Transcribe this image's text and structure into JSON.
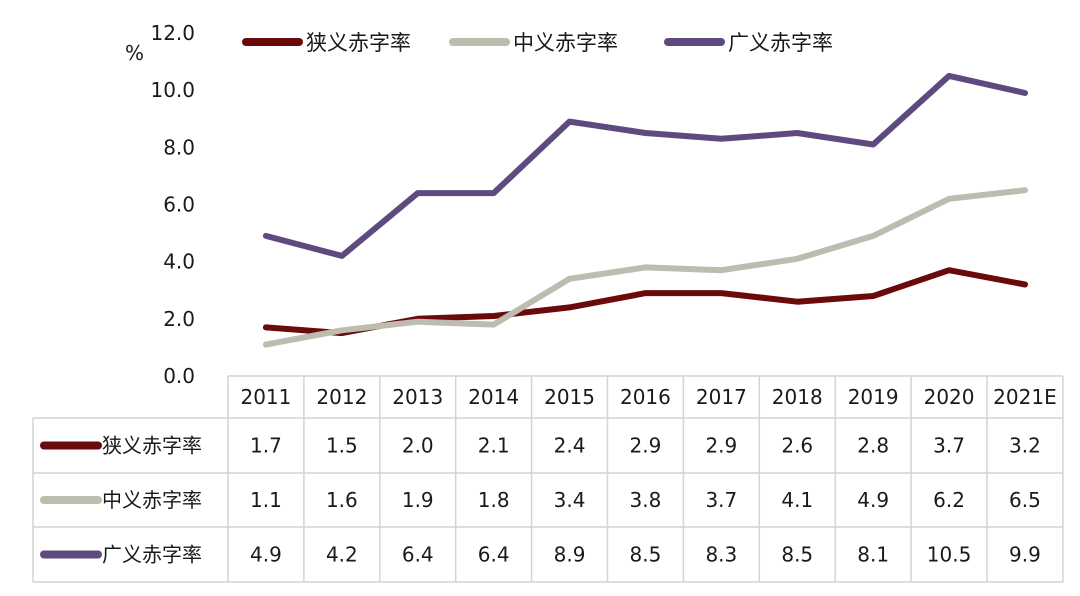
{
  "chart_data": {
    "type": "line",
    "unit": "%",
    "categories": [
      "2011",
      "2012",
      "2013",
      "2014",
      "2015",
      "2016",
      "2017",
      "2018",
      "2019",
      "2020",
      "2021E"
    ],
    "yticks": [
      "0.0",
      "2.0",
      "4.0",
      "6.0",
      "8.0",
      "10.0",
      "12.0"
    ],
    "ylim": [
      0,
      12
    ],
    "grid": false,
    "legend_position": "top",
    "series": [
      {
        "name": "狭义赤字率",
        "color": "#6b0a0a",
        "values": [
          1.7,
          1.5,
          2.0,
          2.1,
          2.4,
          2.9,
          2.9,
          2.6,
          2.8,
          3.7,
          3.2
        ],
        "labels": [
          "1.7",
          "1.5",
          "2.0",
          "2.1",
          "2.4",
          "2.9",
          "2.9",
          "2.6",
          "2.8",
          "3.7",
          "3.2"
        ]
      },
      {
        "name": "中义赤字率",
        "color": "#bdbcae",
        "values": [
          1.1,
          1.6,
          1.9,
          1.8,
          3.4,
          3.8,
          3.7,
          4.1,
          4.9,
          6.2,
          6.5
        ],
        "labels": [
          "1.1",
          "1.6",
          "1.9",
          "1.8",
          "3.4",
          "3.8",
          "3.7",
          "4.1",
          "4.9",
          "6.2",
          "6.5"
        ]
      },
      {
        "name": "广义赤字率",
        "color": "#5f4a80",
        "values": [
          4.9,
          4.2,
          6.4,
          6.4,
          8.9,
          8.5,
          8.3,
          8.5,
          8.1,
          10.5,
          9.9
        ],
        "labels": [
          "4.9",
          "4.2",
          "6.4",
          "6.4",
          "8.9",
          "8.5",
          "8.3",
          "8.5",
          "8.1",
          "10.5",
          "9.9"
        ]
      }
    ]
  }
}
